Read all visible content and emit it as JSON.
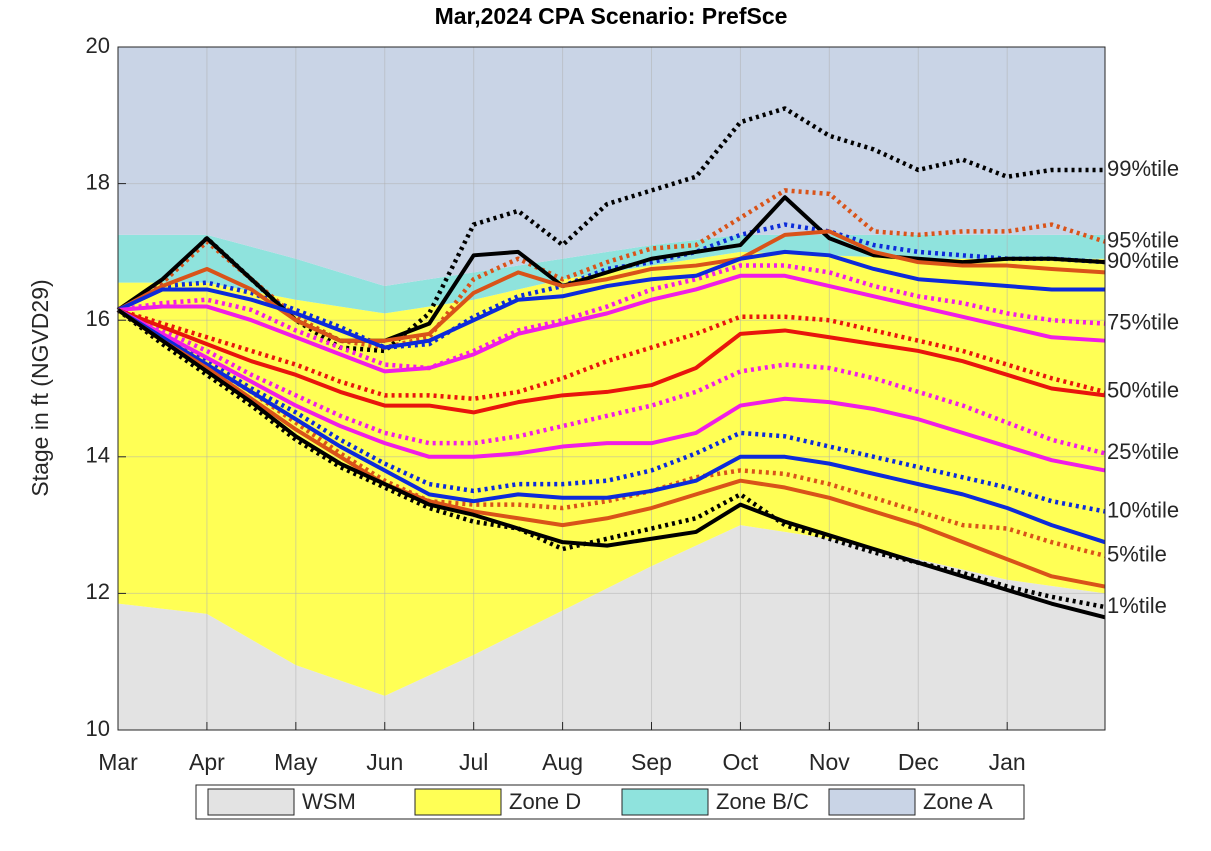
{
  "chart_data": {
    "type": "line",
    "title": "Mar,2024  CPA Scenario: PrefSce",
    "ylabel": "Stage in ft (NGVD29)",
    "xlim": [
      0,
      11.1
    ],
    "ylim": [
      10,
      20
    ],
    "xticks": [
      {
        "value": 0,
        "label": "Mar"
      },
      {
        "value": 1,
        "label": "Apr"
      },
      {
        "value": 2,
        "label": "May"
      },
      {
        "value": 3,
        "label": "Jun"
      },
      {
        "value": 4,
        "label": "Jul"
      },
      {
        "value": 5,
        "label": "Aug"
      },
      {
        "value": 6,
        "label": "Sep"
      },
      {
        "value": 7,
        "label": "Oct"
      },
      {
        "value": 8,
        "label": "Nov"
      },
      {
        "value": 9,
        "label": "Dec"
      },
      {
        "value": 10,
        "label": "Jan"
      }
    ],
    "yticks": [
      10,
      12,
      14,
      16,
      18,
      20
    ],
    "grid": true,
    "areas": {
      "x": [
        0,
        1,
        2,
        3,
        4,
        5,
        6,
        7,
        8,
        9,
        10,
        11.1
      ],
      "series": [
        {
          "name": "WSM",
          "color": "#e3e3e3",
          "values": [
            11.85,
            11.7,
            10.95,
            10.5,
            11.1,
            11.75,
            12.4,
            13.0,
            12.8,
            12.5,
            12.2,
            12.0
          ]
        },
        {
          "name": "Zone D",
          "color": "#ffff55",
          "values": [
            16.55,
            16.55,
            16.3,
            16.1,
            16.3,
            16.6,
            16.8,
            17.0,
            16.95,
            16.9,
            16.9,
            16.9
          ]
        },
        {
          "name": "Zone B/C",
          "color": "#8fe3dd",
          "values": [
            17.25,
            17.25,
            16.9,
            16.5,
            16.7,
            16.9,
            17.1,
            17.25,
            17.25,
            17.25,
            17.25,
            17.25
          ]
        },
        {
          "name": "Zone A",
          "color": "#c9d4e6",
          "values": [
            20,
            20,
            20,
            20,
            20,
            20,
            20,
            20,
            20,
            20,
            20,
            20
          ]
        }
      ]
    },
    "x": [
      0,
      0.5,
      1,
      1.5,
      2,
      2.5,
      3,
      3.5,
      4,
      4.5,
      5,
      5.5,
      6,
      6.5,
      7,
      7.5,
      8,
      8.5,
      9,
      9.5,
      10,
      10.5,
      11.1
    ],
    "series": [
      {
        "name": "99%tile",
        "color": "#000000",
        "values": [
          16.15,
          16.6,
          17.2,
          16.6,
          16.0,
          15.7,
          15.7,
          15.95,
          16.95,
          17.0,
          16.5,
          16.7,
          16.9,
          17.0,
          17.1,
          17.8,
          17.2,
          16.95,
          16.9,
          16.85,
          16.9,
          16.9,
          16.85
        ],
        "alt_values": [
          16.15,
          16.55,
          17.2,
          16.6,
          16.0,
          15.6,
          15.55,
          16.1,
          17.4,
          17.6,
          17.1,
          17.7,
          17.9,
          18.1,
          18.9,
          19.1,
          18.7,
          18.5,
          18.2,
          18.35,
          18.1,
          18.2,
          18.2
        ]
      },
      {
        "name": "95%tile",
        "color": "#d95319",
        "values": [
          16.15,
          16.5,
          16.75,
          16.45,
          16.0,
          15.7,
          15.7,
          15.8,
          16.4,
          16.7,
          16.5,
          16.6,
          16.75,
          16.8,
          16.9,
          17.25,
          17.3,
          17.0,
          16.85,
          16.8,
          16.8,
          16.75,
          16.7
        ],
        "alt_values": [
          16.15,
          16.55,
          17.15,
          16.6,
          16.05,
          15.7,
          15.6,
          15.75,
          16.6,
          16.9,
          16.6,
          16.85,
          17.05,
          17.1,
          17.5,
          17.9,
          17.85,
          17.3,
          17.25,
          17.3,
          17.3,
          17.4,
          17.15
        ]
      },
      {
        "name": "90%tile",
        "color": "#0d2bd9",
        "values": [
          16.15,
          16.45,
          16.45,
          16.3,
          16.1,
          15.85,
          15.6,
          15.7,
          16.0,
          16.3,
          16.35,
          16.5,
          16.6,
          16.65,
          16.9,
          17.0,
          16.95,
          16.75,
          16.6,
          16.55,
          16.5,
          16.45,
          16.45
        ],
        "alt_values": [
          16.15,
          16.5,
          16.55,
          16.4,
          16.15,
          15.9,
          15.6,
          15.65,
          16.05,
          16.35,
          16.5,
          16.75,
          16.85,
          17.0,
          17.25,
          17.4,
          17.3,
          17.1,
          17.0,
          16.95,
          16.9,
          16.9,
          16.85
        ]
      },
      {
        "name": "75%tile",
        "color": "#f01ee6",
        "values": [
          16.15,
          16.2,
          16.2,
          16.0,
          15.75,
          15.5,
          15.25,
          15.3,
          15.5,
          15.8,
          15.95,
          16.1,
          16.3,
          16.45,
          16.65,
          16.65,
          16.5,
          16.35,
          16.2,
          16.05,
          15.9,
          15.75,
          15.7
        ],
        "alt_values": [
          16.15,
          16.25,
          16.3,
          16.15,
          15.85,
          15.6,
          15.35,
          15.3,
          15.55,
          15.85,
          16.0,
          16.2,
          16.45,
          16.6,
          16.8,
          16.8,
          16.7,
          16.5,
          16.35,
          16.25,
          16.1,
          16.0,
          15.95
        ]
      },
      {
        "name": "50%tile",
        "color": "#e8150c",
        "values": [
          16.15,
          15.9,
          15.65,
          15.4,
          15.2,
          14.95,
          14.75,
          14.75,
          14.65,
          14.8,
          14.9,
          14.95,
          15.05,
          15.3,
          15.8,
          15.85,
          15.75,
          15.65,
          15.55,
          15.4,
          15.2,
          15.0,
          14.9
        ],
        "alt_values": [
          16.15,
          15.95,
          15.75,
          15.55,
          15.35,
          15.1,
          14.9,
          14.9,
          14.85,
          14.95,
          15.15,
          15.4,
          15.6,
          15.8,
          16.05,
          16.05,
          16.0,
          15.85,
          15.7,
          15.55,
          15.35,
          15.15,
          14.95
        ]
      },
      {
        "name": "25%tile",
        "color": "#f01ee6",
        "values": [
          16.15,
          15.8,
          15.45,
          15.1,
          14.75,
          14.45,
          14.2,
          14.0,
          14.0,
          14.05,
          14.15,
          14.2,
          14.2,
          14.35,
          14.75,
          14.85,
          14.8,
          14.7,
          14.55,
          14.35,
          14.15,
          13.95,
          13.8
        ],
        "alt_values": [
          16.15,
          15.85,
          15.55,
          15.2,
          14.9,
          14.6,
          14.35,
          14.2,
          14.2,
          14.3,
          14.45,
          14.6,
          14.75,
          14.95,
          15.25,
          15.35,
          15.3,
          15.15,
          14.95,
          14.75,
          14.5,
          14.25,
          14.05
        ]
      },
      {
        "name": "10%tile",
        "color": "#0d2bd9",
        "values": [
          16.15,
          15.75,
          15.35,
          14.95,
          14.55,
          14.15,
          13.8,
          13.45,
          13.35,
          13.45,
          13.4,
          13.4,
          13.5,
          13.65,
          14.0,
          14.0,
          13.9,
          13.75,
          13.6,
          13.45,
          13.25,
          13.0,
          12.75
        ],
        "alt_values": [
          16.15,
          15.75,
          15.4,
          15.0,
          14.65,
          14.25,
          13.9,
          13.6,
          13.5,
          13.6,
          13.6,
          13.65,
          13.8,
          14.05,
          14.35,
          14.3,
          14.15,
          14.0,
          13.85,
          13.7,
          13.55,
          13.35,
          13.2
        ]
      },
      {
        "name": "5%tile",
        "color": "#d95319",
        "values": [
          16.15,
          15.7,
          15.3,
          14.85,
          14.4,
          14.0,
          13.6,
          13.35,
          13.2,
          13.1,
          13.0,
          13.1,
          13.25,
          13.45,
          13.65,
          13.55,
          13.4,
          13.2,
          13.0,
          12.75,
          12.5,
          12.25,
          12.1
        ],
        "alt_values": [
          16.15,
          15.75,
          15.35,
          14.95,
          14.5,
          14.05,
          13.65,
          13.35,
          13.3,
          13.3,
          13.25,
          13.35,
          13.5,
          13.7,
          13.8,
          13.75,
          13.6,
          13.4,
          13.2,
          13.0,
          12.95,
          12.75,
          12.55
        ]
      },
      {
        "name": "1%tile",
        "color": "#000000",
        "values": [
          16.15,
          15.7,
          15.25,
          14.8,
          14.3,
          13.9,
          13.6,
          13.3,
          13.15,
          12.95,
          12.75,
          12.7,
          12.8,
          12.9,
          13.3,
          13.05,
          12.85,
          12.65,
          12.45,
          12.25,
          12.05,
          11.85,
          11.65
        ],
        "alt_values": [
          16.15,
          15.65,
          15.2,
          14.75,
          14.25,
          13.85,
          13.55,
          13.25,
          13.05,
          12.95,
          12.65,
          12.8,
          12.95,
          13.1,
          13.45,
          13.0,
          12.8,
          12.6,
          12.45,
          12.3,
          12.1,
          11.95,
          11.8
        ]
      }
    ]
  }
}
